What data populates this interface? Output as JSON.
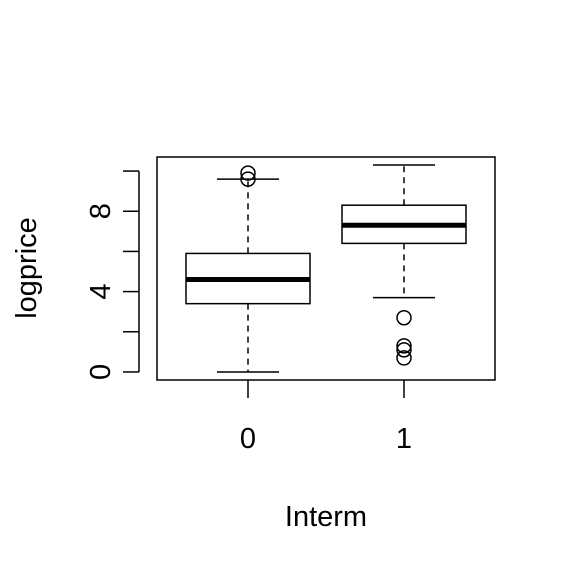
{
  "chart_data": {
    "type": "boxplot",
    "title": "",
    "xlabel": "Interm",
    "ylabel": "logprice",
    "categories": [
      "0",
      "1"
    ],
    "ylim": [
      -0.4,
      10.7
    ],
    "yticks": [
      0,
      2,
      4,
      6,
      8,
      10
    ],
    "ytick_labels": [
      "0",
      "",
      "4",
      "",
      "8",
      ""
    ],
    "boxes": [
      {
        "category": "0",
        "whisker_low": 0.0,
        "q1": 3.4,
        "median": 4.6,
        "q3": 5.9,
        "whisker_high": 9.6,
        "outliers": [
          9.6,
          9.9
        ]
      },
      {
        "category": "1",
        "whisker_low": 3.7,
        "q1": 6.4,
        "median": 7.3,
        "q3": 8.3,
        "whisker_high": 10.3,
        "outliers": [
          2.7,
          1.3,
          1.1,
          0.7
        ]
      }
    ],
    "grid": false,
    "legend": "none"
  }
}
